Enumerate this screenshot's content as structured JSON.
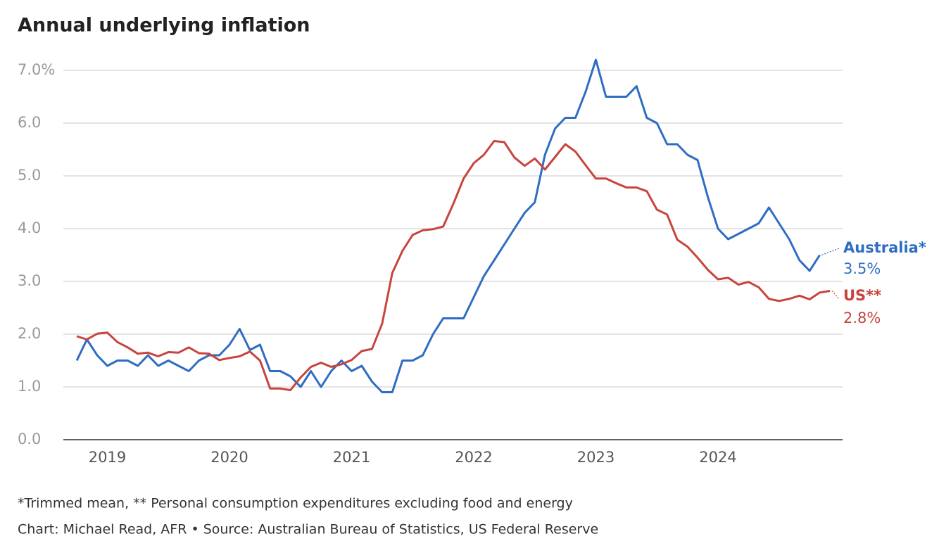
{
  "chart_data": {
    "type": "line",
    "title": "Annual underlying inflation",
    "notes": [
      "*Trimmed mean, ** Personal consumption expenditures excluding food and energy",
      "Chart: Michael Read, AFR • Source: Australian Bureau of Statistics, US Federal Reserve"
    ],
    "x": [
      2018.75,
      2018.833,
      2018.917,
      2019,
      2019.083,
      2019.167,
      2019.25,
      2019.333,
      2019.417,
      2019.5,
      2019.583,
      2019.667,
      2019.75,
      2019.833,
      2019.917,
      2020,
      2020.083,
      2020.167,
      2020.25,
      2020.333,
      2020.417,
      2020.5,
      2020.583,
      2020.667,
      2020.75,
      2020.833,
      2020.917,
      2021,
      2021.083,
      2021.167,
      2021.25,
      2021.333,
      2021.417,
      2021.5,
      2021.583,
      2021.667,
      2021.75,
      2021.833,
      2021.917,
      2022,
      2022.083,
      2022.167,
      2022.25,
      2022.333,
      2022.417,
      2022.5,
      2022.583,
      2022.667,
      2022.75,
      2022.833,
      2022.917,
      2023,
      2023.083,
      2023.167,
      2023.25,
      2023.333,
      2023.417,
      2023.5,
      2023.583,
      2023.667,
      2023.75,
      2023.833,
      2023.917,
      2024,
      2024.083,
      2024.167,
      2024.25,
      2024.333,
      2024.417,
      2024.5,
      2024.583,
      2024.667,
      2024.75,
      2024.833,
      2024.917
    ],
    "series": [
      {
        "name": "Australia*",
        "end_label": "3.5%",
        "color": "#2f6dc3",
        "values": [
          1.5,
          1.9,
          1.6,
          1.4,
          1.5,
          1.5,
          1.4,
          1.6,
          1.4,
          1.5,
          1.4,
          1.3,
          1.5,
          1.6,
          1.6,
          1.8,
          2.1,
          1.7,
          1.8,
          1.3,
          1.3,
          1.2,
          1.0,
          1.3,
          1.0,
          1.3,
          1.5,
          1.3,
          1.4,
          1.1,
          0.9,
          0.9,
          1.5,
          1.5,
          1.6,
          2.0,
          2.3,
          2.3,
          2.3,
          2.7,
          3.1,
          3.4,
          3.7,
          4.0,
          4.3,
          4.5,
          5.4,
          5.9,
          6.1,
          6.1,
          6.6,
          7.2,
          6.5,
          6.5,
          6.5,
          6.7,
          6.1,
          6.0,
          5.6,
          5.6,
          5.4,
          5.3,
          4.6,
          4.0,
          3.8,
          3.9,
          4.0,
          4.1,
          4.4,
          4.1,
          3.8,
          3.4,
          3.2,
          3.5,
          null
        ]
      },
      {
        "name": "US**",
        "end_label": "2.8%",
        "color": "#c8443d",
        "values": [
          1.96,
          1.9,
          2.01,
          2.03,
          1.85,
          1.75,
          1.63,
          1.65,
          1.58,
          1.66,
          1.65,
          1.75,
          1.64,
          1.63,
          1.51,
          1.55,
          1.58,
          1.67,
          1.5,
          0.97,
          0.97,
          0.94,
          1.18,
          1.38,
          1.46,
          1.38,
          1.43,
          1.51,
          1.68,
          1.72,
          2.2,
          3.16,
          3.58,
          3.88,
          3.97,
          3.99,
          4.04,
          4.47,
          4.95,
          5.24,
          5.4,
          5.66,
          5.64,
          5.35,
          5.19,
          5.33,
          5.12,
          5.36,
          5.6,
          5.46,
          5.2,
          4.95,
          4.95,
          4.86,
          4.78,
          4.78,
          4.71,
          4.36,
          4.27,
          3.79,
          3.66,
          3.45,
          3.22,
          3.04,
          3.07,
          2.94,
          2.99,
          2.89,
          2.67,
          2.63,
          2.67,
          2.73,
          2.66,
          2.79,
          2.82
        ]
      }
    ],
    "xlim": [
      2018.64,
      2025.02
    ],
    "xticks": [
      2019,
      2020,
      2021,
      2022,
      2023,
      2024
    ],
    "ylim": [
      0,
      7.4
    ],
    "yticks": [
      {
        "value": 0,
        "label": "0.0"
      },
      {
        "value": 1,
        "label": "1.0"
      },
      {
        "value": 2,
        "label": "2.0"
      },
      {
        "value": 3,
        "label": "3.0"
      },
      {
        "value": 4,
        "label": "4.0"
      },
      {
        "value": 5,
        "label": "5.0"
      },
      {
        "value": 6,
        "label": "6.0"
      },
      {
        "value": 7,
        "label": "7.0%"
      }
    ],
    "grid": true
  }
}
